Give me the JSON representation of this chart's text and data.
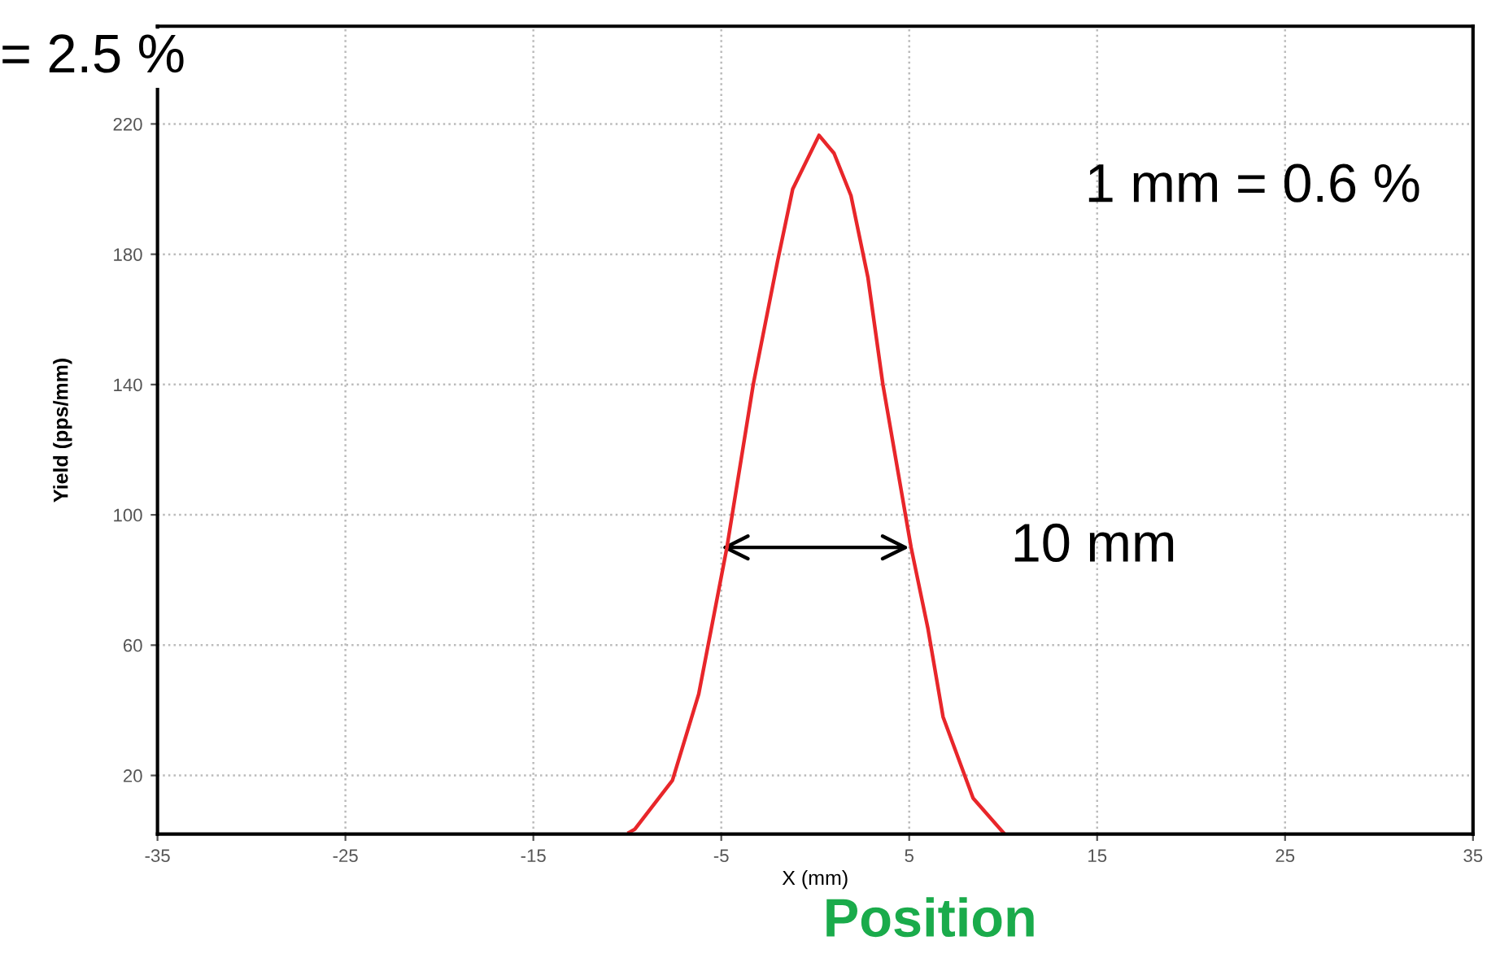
{
  "chart_data": {
    "type": "line",
    "xlabel": "X (mm)",
    "ylabel": "Yield (pps/mm)",
    "x": [
      -9.9,
      -9.6,
      -7.6,
      -6.2,
      -4.7,
      -3.3,
      -2.0,
      -1.2,
      0.2,
      1.0,
      1.9,
      2.8,
      3.6,
      5.1,
      6.0,
      6.8,
      8.4,
      10.0
    ],
    "series": [
      {
        "color": "#e8262a",
        "values": [
          2.5,
          3.5,
          18.5,
          45,
          90,
          140,
          178,
          200,
          216.5,
          211,
          198,
          173,
          140,
          90,
          65,
          38,
          13,
          2.5
        ]
      }
    ],
    "xlim": [
      -35,
      35
    ],
    "ylim": [
      2,
      250
    ],
    "xticks": [
      -35,
      -25,
      -15,
      -5,
      5,
      15,
      25,
      35
    ],
    "yticks": [
      20,
      60,
      100,
      140,
      180,
      220
    ],
    "grid": true,
    "marker": "none",
    "line_style": "solid",
    "annotations": [
      "= 2.5 %",
      "1 mm = 0.6 %",
      {
        "text": "10 mm",
        "x": 5,
        "y": 90
      },
      "Position"
    ]
  }
}
